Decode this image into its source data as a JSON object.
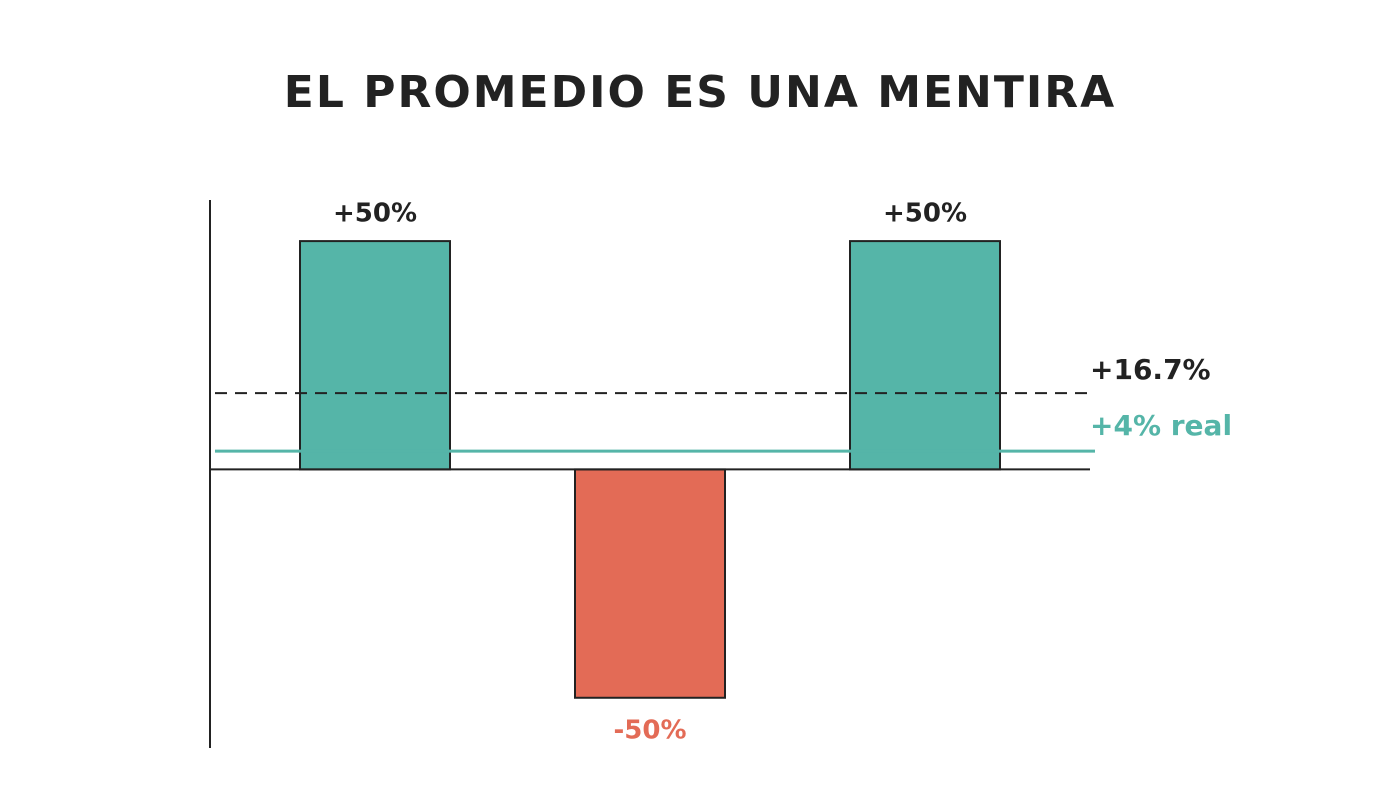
{
  "chart_data": {
    "type": "bar",
    "title": "EL PROMEDIO ES UNA MENTIRA",
    "categories": [
      null,
      null,
      null
    ],
    "values": [
      50,
      -50,
      50
    ],
    "value_labels": [
      "+50%",
      "-50%",
      "+50%"
    ],
    "colors": [
      "#55b5a8",
      "#e36b56",
      "#55b5a8"
    ],
    "ylim": [
      -61,
      59
    ],
    "reference_lines": [
      {
        "value": 16.7,
        "label": "+16.7%",
        "color": "#222222",
        "style": "dashed"
      },
      {
        "value": 4,
        "label": "+4% real",
        "color": "#55b5a8",
        "style": "solid"
      }
    ]
  }
}
